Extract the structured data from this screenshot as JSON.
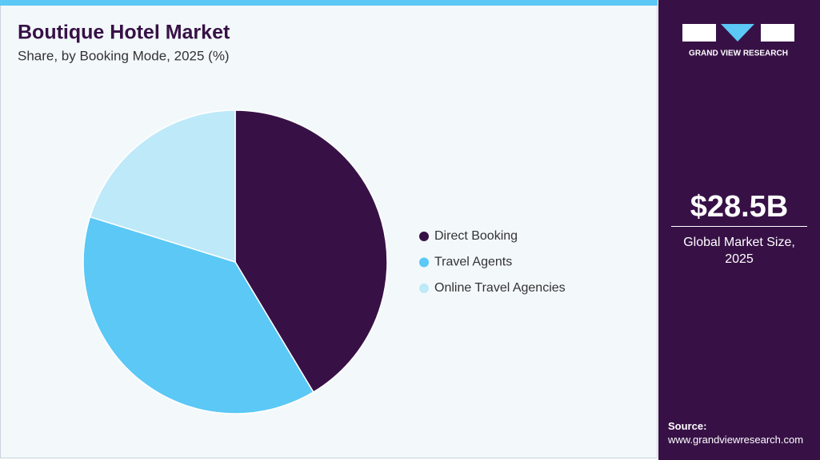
{
  "chart_data": {
    "type": "pie",
    "title": "Boutique Hotel Market",
    "subtitle": "Share, by Booking Mode, 2025 (%)",
    "categories": [
      "Direct Booking",
      "Travel Agents",
      "Online Travel Agencies"
    ],
    "values": [
      41.4,
      38.4,
      20.2
    ],
    "colors": [
      "#371146",
      "#5bc8f5",
      "#bde9f9"
    ],
    "legend": "right"
  },
  "sidebar": {
    "brand": "GRAND VIEW RESEARCH",
    "market_size": "$28.5B",
    "market_label": "Global Market Size, 2025",
    "source_label": "Source:",
    "source_url": "www.grandviewresearch.com"
  }
}
